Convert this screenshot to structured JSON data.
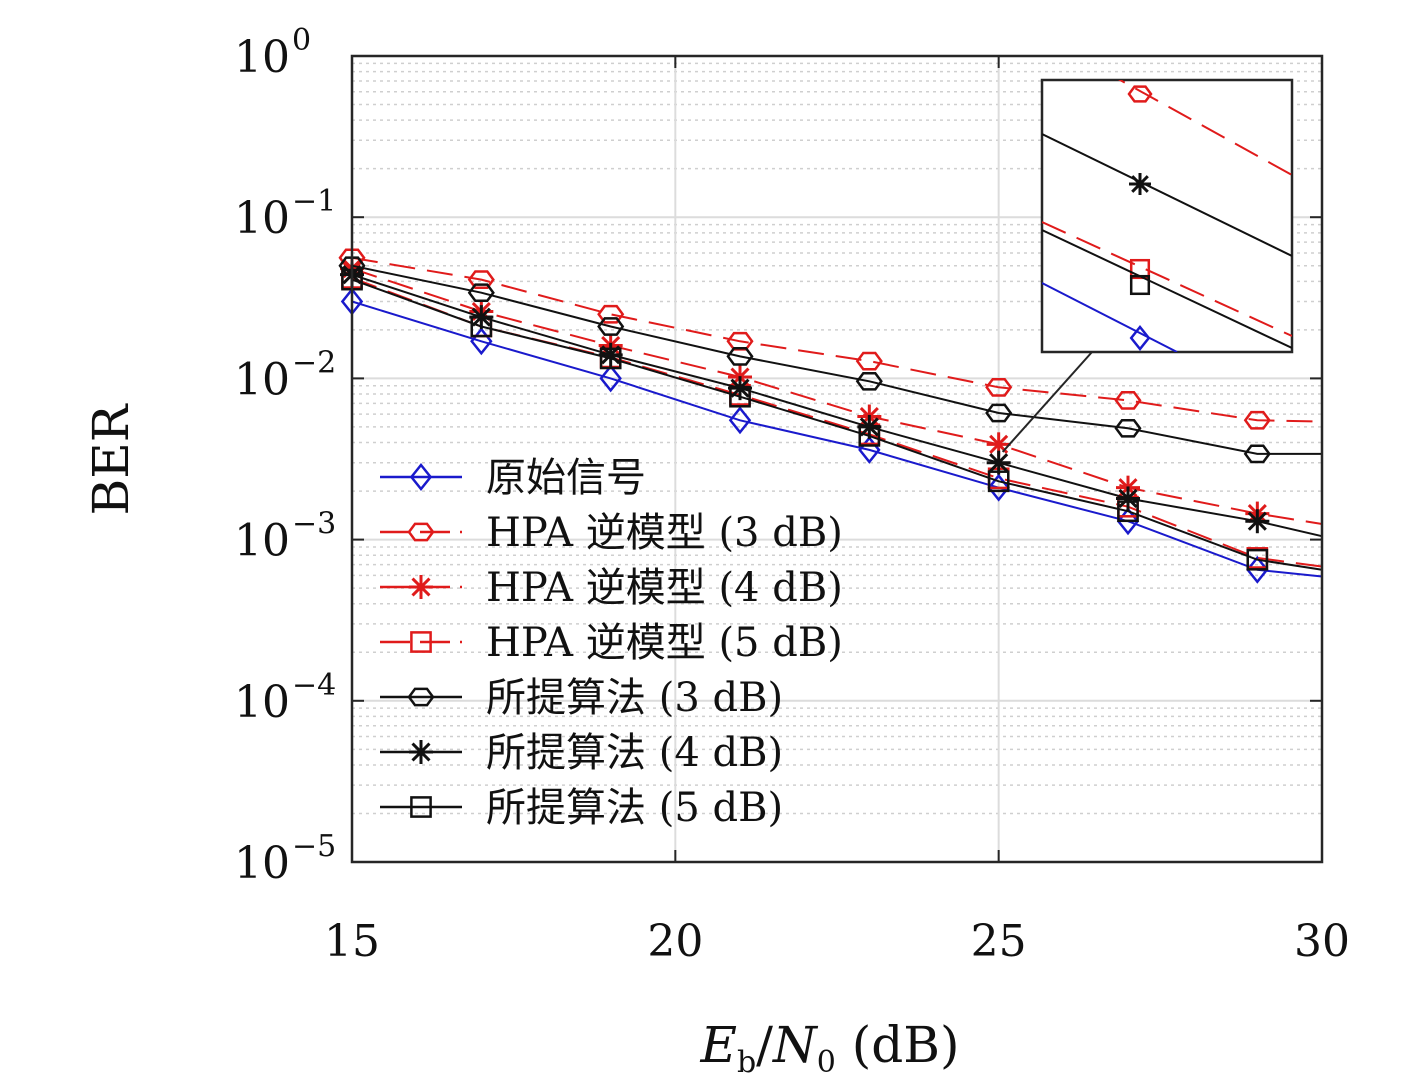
{
  "chart_data": {
    "type": "line",
    "xlabel": "E_b/N_0 (dB)",
    "ylabel": "BER",
    "x_scale": "linear",
    "y_scale": "log",
    "xlim": [
      15,
      30
    ],
    "ylim": [
      1e-05,
      1
    ],
    "x_ticks": [
      "15",
      "20",
      "25",
      "30"
    ],
    "y_ticks": [
      {
        "base": "10",
        "exp": "0"
      },
      {
        "base": "10",
        "exp": "−1"
      },
      {
        "base": "10",
        "exp": "−2"
      },
      {
        "base": "10",
        "exp": "−3"
      },
      {
        "base": "10",
        "exp": "−4"
      },
      {
        "base": "10",
        "exp": "−5"
      }
    ],
    "grid": true,
    "minor_grid": true,
    "legend_position": "lower-left",
    "inset": "zoom of curves near Eb/N0 ≈ 25–28 dB",
    "series": [
      {
        "name": "原始信号",
        "color": "#1a1acc",
        "dash": "solid",
        "marker": "diamond",
        "x": [
          15,
          17,
          19,
          21,
          23,
          25,
          27,
          29,
          30
        ],
        "y": [
          0.03,
          0.017,
          0.01,
          0.0055,
          0.0036,
          0.0021,
          0.0013,
          0.00065,
          0.00059
        ]
      },
      {
        "name": "HPA 逆模型 (3 dB)",
        "color": "#e01b1b",
        "dash": "dashed",
        "marker": "hexagon",
        "x": [
          15,
          17,
          19,
          21,
          23,
          25,
          27,
          29,
          30
        ],
        "y": [
          0.056,
          0.041,
          0.025,
          0.017,
          0.0128,
          0.0088,
          0.0073,
          0.0055,
          0.0054
        ]
      },
      {
        "name": "HPA 逆模型 (4 dB)",
        "color": "#e01b1b",
        "dash": "dashed",
        "marker": "star",
        "x": [
          15,
          17,
          19,
          21,
          23,
          25,
          27,
          29,
          30
        ],
        "y": [
          0.048,
          0.026,
          0.016,
          0.0102,
          0.0058,
          0.0039,
          0.0021,
          0.00145,
          0.00125
        ]
      },
      {
        "name": "HPA 逆模型 (5 dB)",
        "color": "#e01b1b",
        "dash": "dashed",
        "marker": "square",
        "x": [
          15,
          17,
          19,
          21,
          23,
          25,
          27,
          29,
          30
        ],
        "y": [
          0.042,
          0.021,
          0.0135,
          0.0079,
          0.0045,
          0.0024,
          0.0016,
          0.00077,
          0.00068
        ]
      },
      {
        "name": "所提算法 (3 dB)",
        "color": "#111111",
        "dash": "solid",
        "marker": "hexagon",
        "x": [
          15,
          17,
          19,
          21,
          23,
          25,
          27,
          29,
          30
        ],
        "y": [
          0.05,
          0.034,
          0.021,
          0.0137,
          0.0096,
          0.0061,
          0.0049,
          0.0034,
          0.0034
        ]
      },
      {
        "name": "所提算法 (4 dB)",
        "color": "#111111",
        "dash": "solid",
        "marker": "star",
        "x": [
          15,
          17,
          19,
          21,
          23,
          25,
          27,
          29,
          30
        ],
        "y": [
          0.044,
          0.024,
          0.014,
          0.0087,
          0.005,
          0.003,
          0.0018,
          0.0013,
          0.00105
        ]
      },
      {
        "name": "所提算法 (5 dB)",
        "color": "#111111",
        "dash": "solid",
        "marker": "square",
        "x": [
          15,
          17,
          19,
          21,
          23,
          25,
          27,
          29,
          30
        ],
        "y": [
          0.041,
          0.021,
          0.0133,
          0.0077,
          0.0044,
          0.0023,
          0.0015,
          0.00075,
          0.00065
        ]
      }
    ]
  }
}
